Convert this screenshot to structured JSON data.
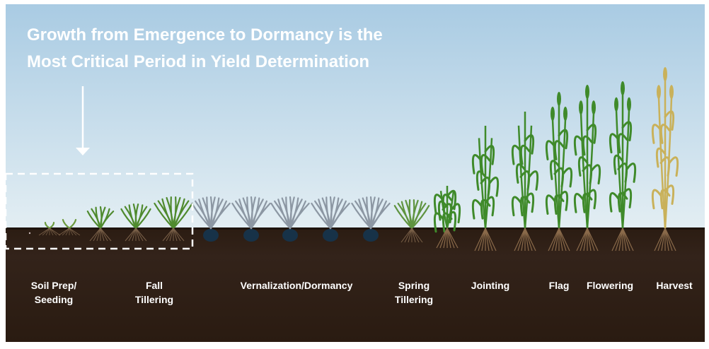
{
  "header": {
    "title_lines": [
      "Growth from Emergence to Dormancy is the",
      "Most Critical Period in Yield Determination"
    ]
  },
  "stages": [
    {
      "label": [
        "Soil Prep/",
        "Seeding"
      ]
    },
    {
      "label": [
        "Fall",
        "Tillering"
      ]
    },
    {
      "label": [
        "Vernalization/Dormancy"
      ]
    },
    {
      "label": [
        "Spring",
        "Tillering"
      ]
    },
    {
      "label": [
        "Jointing"
      ]
    },
    {
      "label": [
        "Flag"
      ]
    },
    {
      "label": [
        "Flowering"
      ]
    },
    {
      "label": [
        "Harvest"
      ]
    }
  ]
}
